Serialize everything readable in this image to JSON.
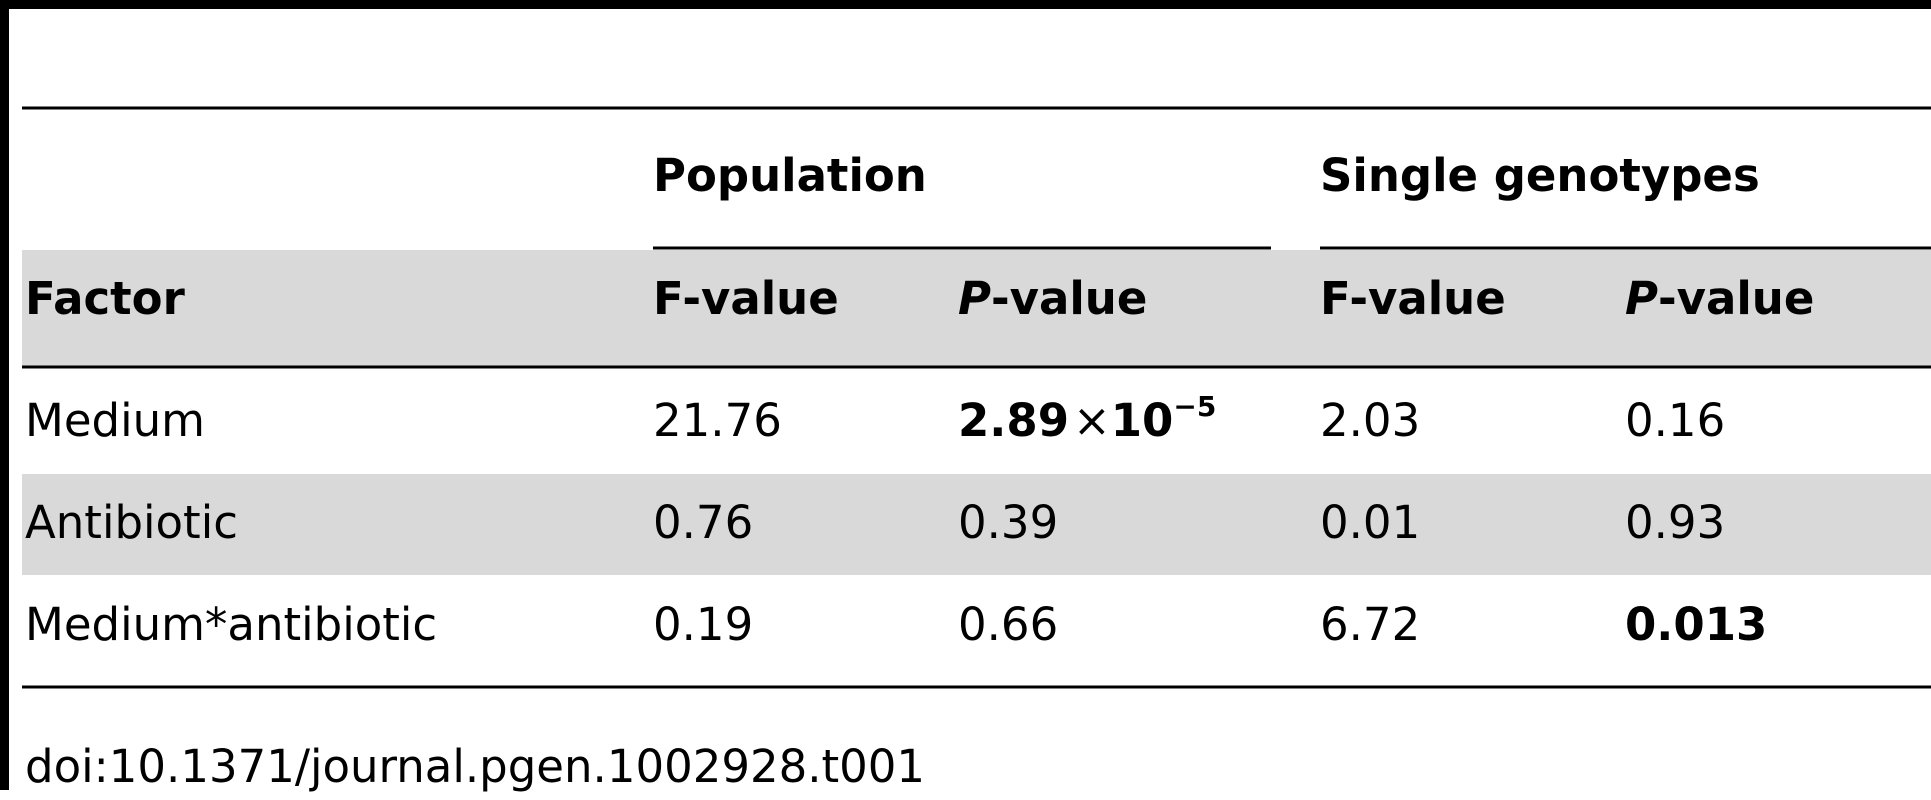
{
  "table": {
    "groups": [
      "Population",
      "Single genotypes"
    ],
    "columns": [
      {
        "text": "Factor"
      },
      {
        "text": "F-value"
      },
      {
        "italic": "P",
        "text": "-value"
      },
      {
        "text": "F-value"
      },
      {
        "italic": "P",
        "text": "-value"
      }
    ],
    "rows": [
      {
        "cells": [
          {
            "text": "Medium"
          },
          {
            "text": "21.76"
          },
          {
            "mantissa": "2.89",
            "times": "×",
            "base": "10",
            "exponent": "−5",
            "bold": true
          },
          {
            "text": "2.03"
          },
          {
            "text": "0.16"
          }
        ]
      },
      {
        "cells": [
          {
            "text": "Antibiotic"
          },
          {
            "text": "0.76"
          },
          {
            "text": "0.39"
          },
          {
            "text": "0.01"
          },
          {
            "text": "0.93"
          }
        ]
      },
      {
        "cells": [
          {
            "text": "Medium*antibiotic"
          },
          {
            "text": "0.19"
          },
          {
            "text": "0.66"
          },
          {
            "text": "6.72"
          },
          {
            "text": "0.013",
            "bold": true
          }
        ]
      }
    ],
    "footer": "doi:10.1371/journal.pgen.1002928.t001"
  }
}
